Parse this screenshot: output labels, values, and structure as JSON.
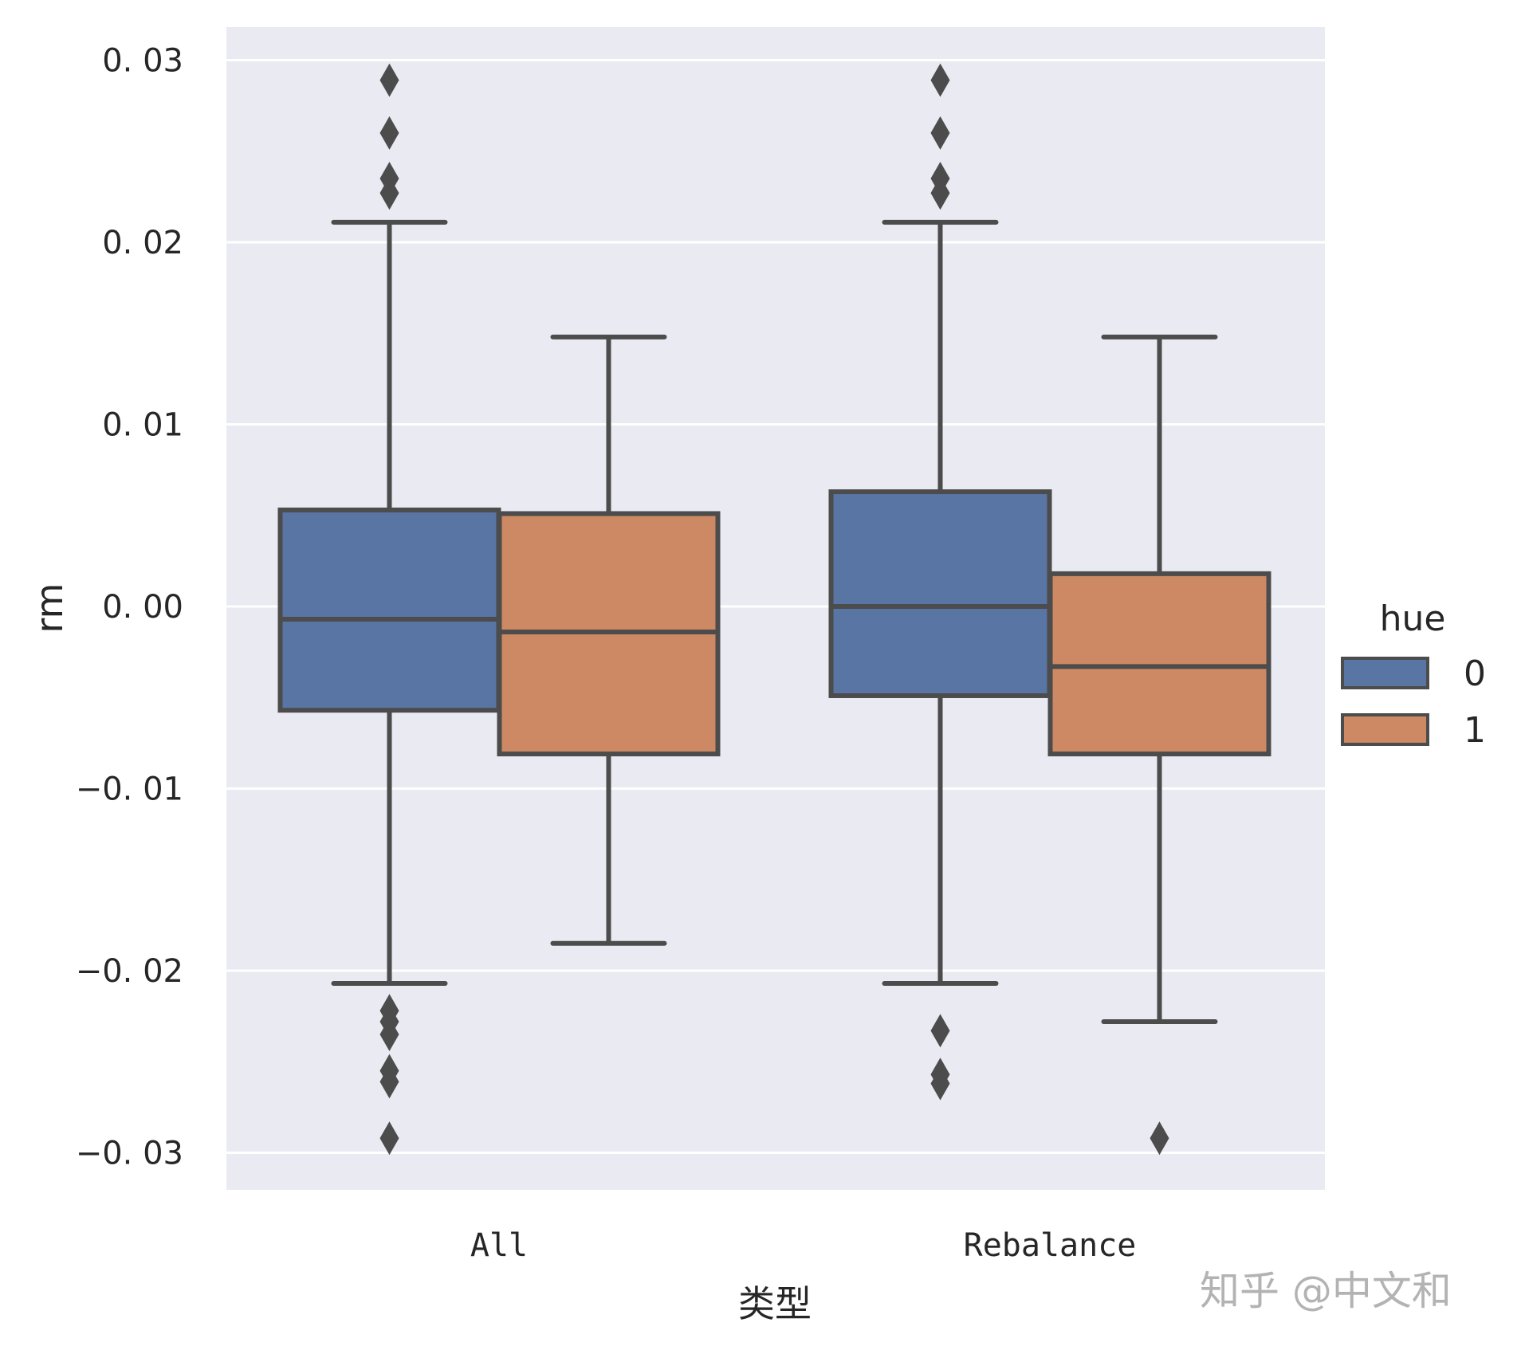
{
  "chart_data": {
    "type": "box",
    "title": "",
    "xlabel": "类型",
    "ylabel": "rm",
    "categories": [
      "All",
      "Rebalance"
    ],
    "hue_title": "hue",
    "hue_levels": [
      "0",
      "1"
    ],
    "colors": {
      "0": "#5975a4",
      "1": "#cc8963"
    },
    "edge_color": "#4c4c4c",
    "background_color": "#eaeaf2",
    "grid": true,
    "grid_color": "#ffffff",
    "ylim": [
      -0.0322,
      0.0319
    ],
    "yticks": [
      -0.03,
      -0.02,
      -0.01,
      0.0,
      0.01,
      0.02,
      0.03
    ],
    "ytick_labels": [
      "−0. 03",
      "−0. 02",
      "−0. 01",
      "0. 00",
      "0. 01",
      "0. 02",
      "0. 03"
    ],
    "legend_position": "right-center, outside",
    "series": [
      {
        "name": "0",
        "boxes": [
          {
            "category": "All",
            "whisker_low": -0.0207,
            "q1": -0.0057,
            "median": -0.0007,
            "q3": 0.0053,
            "whisker_high": 0.0211,
            "outliers": [
              0.0289,
              0.026,
              0.0235,
              0.0227,
              -0.0222,
              -0.0228,
              -0.0235,
              -0.0255,
              -0.0261,
              -0.0292
            ]
          },
          {
            "category": "Rebalance",
            "whisker_low": -0.0207,
            "q1": -0.0049,
            "median": 0.0,
            "q3": 0.0063,
            "whisker_high": 0.0211,
            "outliers": [
              0.0289,
              0.026,
              0.0235,
              0.0227,
              -0.0233,
              -0.0257,
              -0.0262
            ]
          }
        ]
      },
      {
        "name": "1",
        "boxes": [
          {
            "category": "All",
            "whisker_low": -0.0185,
            "q1": -0.0081,
            "median": -0.0014,
            "q3": 0.0051,
            "whisker_high": 0.0148,
            "outliers": []
          },
          {
            "category": "Rebalance",
            "whisker_low": -0.0228,
            "q1": -0.0081,
            "median": -0.0033,
            "q3": 0.0018,
            "whisker_high": 0.0148,
            "outliers": [
              -0.0292
            ]
          }
        ]
      }
    ]
  },
  "watermark": "知乎 @中文和"
}
